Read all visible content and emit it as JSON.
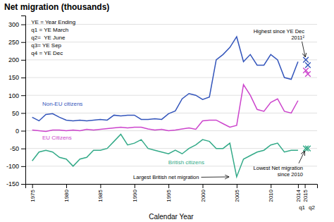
{
  "chart_data": {
    "type": "line",
    "title": "Net migration (thousands)",
    "x_label": "Calendar Year",
    "xlim": [
      1974,
      2016.8
    ],
    "xticks": [
      1975,
      1980,
      1985,
      1990,
      1995,
      2000,
      2005,
      2010,
      2014,
      2015
    ],
    "ylim": [
      -150,
      325
    ],
    "yticks": [
      -150,
      -100,
      -50,
      0,
      50,
      100,
      150,
      200,
      250,
      300
    ],
    "grid": true,
    "series": [
      {
        "name": "Non-EU citizens",
        "color": "#3355bb",
        "x": [
          1975,
          1976,
          1977,
          1978,
          1979,
          1980,
          1981,
          1982,
          1983,
          1984,
          1985,
          1986,
          1987,
          1988,
          1989,
          1990,
          1991,
          1992,
          1993,
          1994,
          1995,
          1996,
          1997,
          1998,
          1999,
          2000,
          2001,
          2002,
          2003,
          2004,
          2005,
          2006,
          2007,
          2008,
          2009,
          2010,
          2011,
          2012,
          2013,
          2014
        ],
        "values": [
          38,
          28,
          46,
          48,
          38,
          30,
          28,
          30,
          28,
          30,
          32,
          30,
          44,
          42,
          44,
          44,
          32,
          32,
          34,
          32,
          48,
          56,
          90,
          105,
          100,
          88,
          95,
          200,
          215,
          235,
          265,
          195,
          215,
          185,
          185,
          215,
          200,
          150,
          145,
          195
        ]
      },
      {
        "name": "EU Citizens",
        "color": "#cc44cc",
        "x": [
          1975,
          1976,
          1977,
          1978,
          1979,
          1980,
          1981,
          1982,
          1983,
          1984,
          1985,
          1986,
          1987,
          1988,
          1989,
          1990,
          1991,
          1992,
          1993,
          1994,
          1995,
          1996,
          1997,
          1998,
          1999,
          2000,
          2001,
          2002,
          2003,
          2004,
          2005,
          2006,
          2007,
          2008,
          2009,
          2010,
          2011,
          2012,
          2013,
          2014
        ],
        "values": [
          2,
          0,
          -2,
          2,
          2,
          0,
          2,
          0,
          4,
          2,
          4,
          6,
          8,
          10,
          8,
          10,
          10,
          5,
          2,
          4,
          0,
          2,
          5,
          8,
          4,
          28,
          30,
          30,
          20,
          10,
          15,
          130,
          100,
          60,
          55,
          80,
          90,
          55,
          50,
          85
        ]
      },
      {
        "name": "British citizens",
        "color": "#33aa88",
        "x": [
          1975,
          1976,
          1977,
          1978,
          1979,
          1980,
          1981,
          1982,
          1983,
          1984,
          1985,
          1986,
          1987,
          1988,
          1989,
          1990,
          1991,
          1992,
          1993,
          1994,
          1995,
          1996,
          1997,
          1998,
          1999,
          2000,
          2001,
          2002,
          2003,
          2004,
          2005,
          2006,
          2007,
          2008,
          2009,
          2010,
          2011,
          2012,
          2013,
          2014
        ],
        "values": [
          -85,
          -60,
          -55,
          -60,
          -75,
          -80,
          -100,
          -80,
          -75,
          -55,
          -55,
          -50,
          -30,
          -10,
          -40,
          -35,
          -25,
          -50,
          -55,
          -60,
          -65,
          -55,
          -65,
          -50,
          -40,
          -25,
          -30,
          -50,
          -50,
          -35,
          -130,
          -80,
          -70,
          -60,
          -55,
          -40,
          -35,
          -60,
          -55,
          -55
        ]
      },
      {
        "type": "scatter",
        "marker": "x",
        "color": "#3355bb",
        "x": [
          2015.15,
          2015.45
        ],
        "values": [
          200,
          185
        ]
      },
      {
        "type": "scatter",
        "marker": "x",
        "color": "#cc44cc",
        "x": [
          2015.15,
          2015.45
        ],
        "values": [
          170,
          160
        ]
      },
      {
        "type": "scatter",
        "marker": "x",
        "color": "#33aa88",
        "x": [
          2015.15,
          2015.45
        ],
        "values": [
          -50,
          -50
        ]
      }
    ],
    "annotations": [
      {
        "text": "Largest British net migration",
        "x": 2004.3,
        "y": -130
      },
      {
        "text": "Lowest Net migration\nsince 2010",
        "x": 2015.15,
        "y": -50
      },
      {
        "text": "Highest since YE Dec\n2011²",
        "x": 2015.15,
        "y": 200
      },
      {
        "text": "q1",
        "x": 2015.15
      },
      {
        "text": "q2",
        "x": 2015.45
      }
    ],
    "note": "YE = Year Ending\nq1 = YE March\nq2=  YE June\nq3= YE Sep\nq4 = YE Dec"
  }
}
